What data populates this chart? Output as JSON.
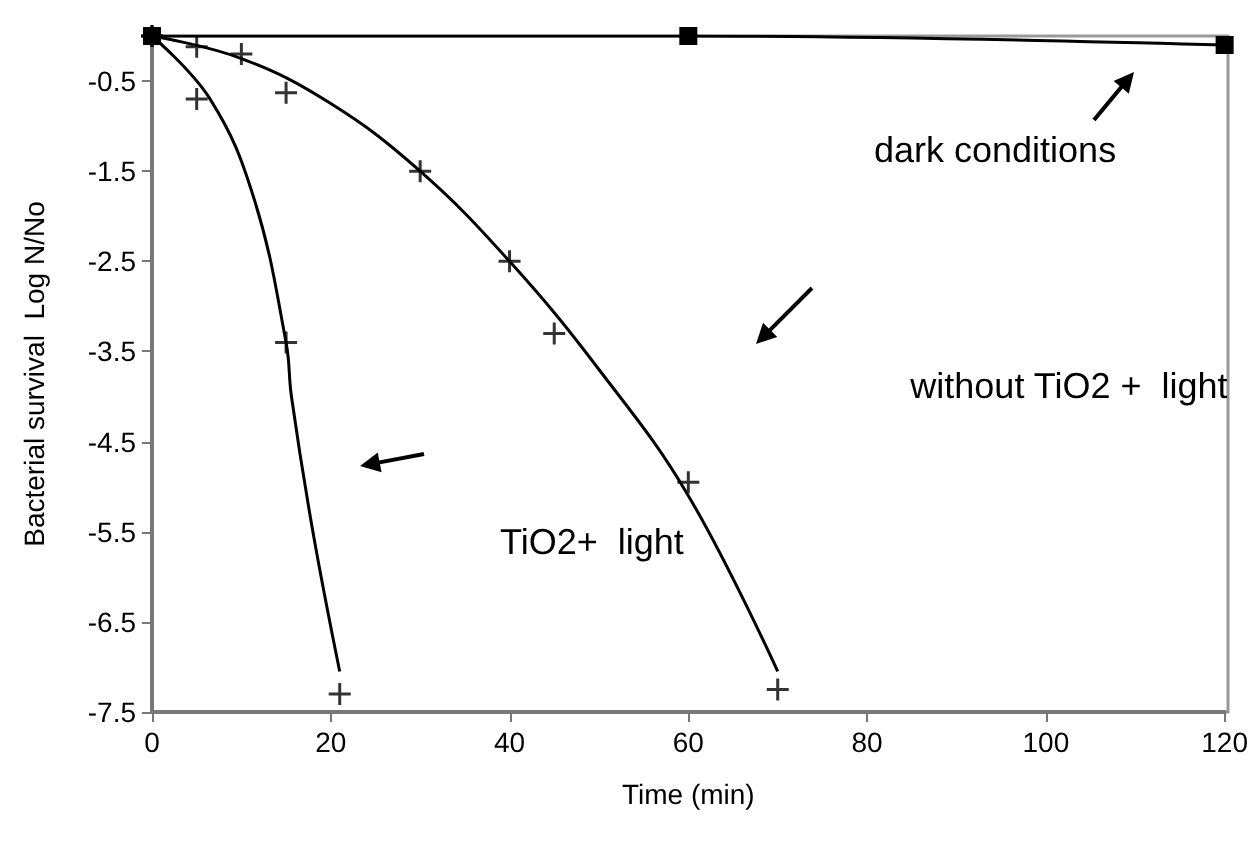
{
  "chart_data": {
    "type": "scatter",
    "xlabel": "Time (min)",
    "ylabel": "Bacterial survival  Log N/No",
    "xlim": [
      0,
      120
    ],
    "xticks": [
      0,
      20,
      40,
      60,
      80,
      100,
      120
    ],
    "ylim": [
      -7.5,
      0
    ],
    "yticks": [
      -7.5,
      -6.5,
      -5.5,
      -4.5,
      -3.5,
      -2.5,
      -1.5,
      -0.5
    ],
    "grid": false,
    "annotations": [
      "dark conditions",
      "without TiO2 +  light",
      "TiO2+  light"
    ],
    "series": [
      {
        "marker": "cross",
        "color": "#000000",
        "x": [
          0,
          5,
          15,
          21
        ],
        "values": [
          0,
          -0.7,
          -3.4,
          -7.3
        ]
      },
      {
        "type": "line",
        "marker": "none",
        "color": "#000000",
        "x": [
          0,
          6.5,
          11.4,
          15,
          15.6,
          18,
          21
        ],
        "values": [
          0,
          -0.7,
          -1.8,
          -3.4,
          -4.0,
          -5.5,
          -7.05
        ]
      },
      {
        "marker": "cross",
        "color": "#000000",
        "x": [
          0,
          5,
          10,
          15,
          30,
          40,
          45,
          60,
          70
        ],
        "values": [
          0,
          -0.12,
          -0.2,
          -0.63,
          -1.5,
          -2.5,
          -3.3,
          -4.95,
          -7.25
        ]
      },
      {
        "type": "line",
        "marker": "none",
        "color": "#000000",
        "x": [
          0,
          10,
          20,
          30,
          40,
          50,
          60,
          70
        ],
        "values": [
          0,
          -0.25,
          -0.75,
          -1.5,
          -2.5,
          -3.7,
          -5.1,
          -7.05
        ]
      },
      {
        "type": "line",
        "marker": "square",
        "color": "#000000",
        "x": [
          0,
          60,
          120
        ],
        "values": [
          0,
          0,
          -0.1
        ]
      }
    ]
  }
}
